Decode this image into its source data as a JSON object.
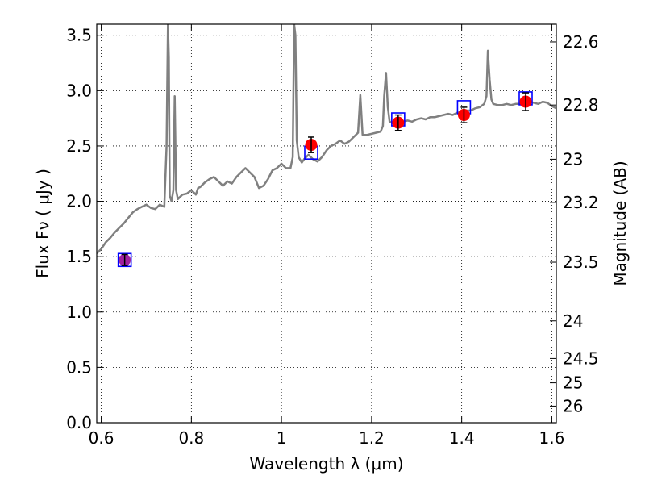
{
  "chart_data": {
    "type": "line",
    "xlabel": "Wavelength  λ (μm)",
    "ylabel": "Flux  Fν  ( μJy )",
    "ylabel_right": "Magnitude (AB)",
    "xlim": [
      0.59,
      1.61
    ],
    "ylim": [
      0.0,
      3.6
    ],
    "grid": true,
    "x_ticks": [
      "0.6",
      "0.8",
      "1",
      "1.2",
      "1.4",
      "1.6"
    ],
    "x_tick_values": [
      0.6,
      0.8,
      1.0,
      1.2,
      1.4,
      1.6
    ],
    "y_ticks": [
      "0.0",
      "0.5",
      "1.0",
      "1.5",
      "2.0",
      "2.5",
      "3.0",
      "3.5"
    ],
    "y_tick_values": [
      0.0,
      0.5,
      1.0,
      1.5,
      2.0,
      2.5,
      3.0,
      3.5
    ],
    "right_ticks": [
      {
        "label": "22.6",
        "flux": 3.44
      },
      {
        "label": "22.8",
        "flux": 2.87
      },
      {
        "label": "23",
        "flux": 2.38
      },
      {
        "label": "23.2",
        "flux": 1.99
      },
      {
        "label": "23.5",
        "flux": 1.45
      },
      {
        "label": "24",
        "flux": 0.92
      },
      {
        "label": "24.5",
        "flux": 0.58
      },
      {
        "label": "25",
        "flux": 0.36
      },
      {
        "label": "26",
        "flux": 0.15
      }
    ],
    "series": [
      {
        "kind": "line",
        "color": "#808080",
        "x": [
          0.59,
          0.6,
          0.61,
          0.62,
          0.63,
          0.64,
          0.65,
          0.66,
          0.67,
          0.68,
          0.69,
          0.7,
          0.71,
          0.72,
          0.73,
          0.74,
          0.745,
          0.748,
          0.75,
          0.752,
          0.756,
          0.76,
          0.763,
          0.766,
          0.77,
          0.78,
          0.79,
          0.8,
          0.81,
          0.815,
          0.82,
          0.83,
          0.84,
          0.85,
          0.86,
          0.87,
          0.88,
          0.89,
          0.9,
          0.91,
          0.92,
          0.93,
          0.94,
          0.95,
          0.96,
          0.97,
          0.98,
          0.99,
          1.0,
          1.01,
          1.02,
          1.025,
          1.028,
          1.031,
          1.034,
          1.038,
          1.045,
          1.05,
          1.06,
          1.07,
          1.08,
          1.09,
          1.1,
          1.11,
          1.12,
          1.13,
          1.14,
          1.15,
          1.16,
          1.17,
          1.175,
          1.18,
          1.19,
          1.2,
          1.21,
          1.22,
          1.225,
          1.228,
          1.232,
          1.236,
          1.24,
          1.25,
          1.26,
          1.27,
          1.28,
          1.29,
          1.3,
          1.31,
          1.32,
          1.33,
          1.34,
          1.35,
          1.36,
          1.37,
          1.38,
          1.39,
          1.4,
          1.41,
          1.42,
          1.43,
          1.44,
          1.45,
          1.455,
          1.458,
          1.462,
          1.466,
          1.47,
          1.48,
          1.49,
          1.5,
          1.51,
          1.52,
          1.53,
          1.54,
          1.55,
          1.56,
          1.57,
          1.58,
          1.59,
          1.6,
          1.61
        ],
        "y": [
          1.53,
          1.57,
          1.63,
          1.67,
          1.72,
          1.76,
          1.8,
          1.85,
          1.9,
          1.93,
          1.95,
          1.97,
          1.94,
          1.93,
          1.97,
          1.95,
          2.5,
          3.6,
          3.3,
          2.05,
          2.0,
          2.1,
          2.95,
          2.1,
          2.02,
          2.06,
          2.07,
          2.1,
          2.06,
          2.12,
          2.13,
          2.17,
          2.2,
          2.22,
          2.18,
          2.14,
          2.18,
          2.16,
          2.22,
          2.26,
          2.3,
          2.26,
          2.22,
          2.12,
          2.14,
          2.2,
          2.28,
          2.3,
          2.34,
          2.3,
          2.3,
          2.4,
          3.6,
          3.5,
          2.55,
          2.4,
          2.35,
          2.38,
          2.42,
          2.38,
          2.36,
          2.4,
          2.46,
          2.5,
          2.52,
          2.55,
          2.52,
          2.54,
          2.58,
          2.62,
          2.96,
          2.6,
          2.6,
          2.61,
          2.62,
          2.63,
          2.68,
          2.95,
          3.16,
          2.85,
          2.72,
          2.7,
          2.71,
          2.72,
          2.73,
          2.72,
          2.74,
          2.75,
          2.74,
          2.76,
          2.76,
          2.77,
          2.78,
          2.79,
          2.78,
          2.8,
          2.81,
          2.82,
          2.82,
          2.84,
          2.85,
          2.88,
          2.95,
          3.36,
          3.1,
          2.92,
          2.88,
          2.87,
          2.87,
          2.88,
          2.87,
          2.88,
          2.88,
          2.89,
          2.9,
          2.89,
          2.88,
          2.9,
          2.89,
          2.86,
          2.84
        ]
      },
      {
        "kind": "squares",
        "color": "#0000ff",
        "x": [
          0.652,
          1.066,
          1.259,
          1.405,
          1.542
        ],
        "y": [
          1.47,
          2.44,
          2.74,
          2.85,
          2.93
        ]
      },
      {
        "kind": "points",
        "color": "#ff0000",
        "x": [
          0.652,
          1.066,
          1.259,
          1.405,
          1.542
        ],
        "y": [
          1.47,
          2.51,
          2.71,
          2.78,
          2.9
        ],
        "yerr": [
          0.05,
          0.07,
          0.07,
          0.07,
          0.08
        ],
        "point_colors": [
          "#a020a0",
          "#ff0000",
          "#ff0000",
          "#ff0000",
          "#ff0000"
        ]
      }
    ]
  }
}
